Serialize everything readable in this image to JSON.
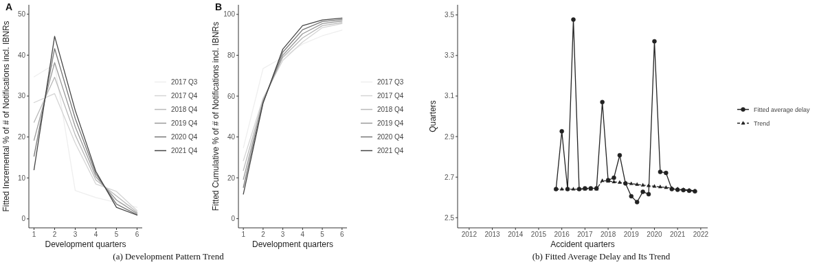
{
  "chart_data": [
    {
      "type": "line",
      "title": "A",
      "xlabel": "Development quarters",
      "ylabel": "Fitted Incremental % of # of Notifications incl. IBNRs",
      "x": [
        1,
        2,
        3,
        4,
        5,
        6
      ],
      "xlim": [
        0.75,
        6.25
      ],
      "xticks": [
        1,
        2,
        3,
        4,
        5,
        6
      ],
      "ylim": [
        -2.2,
        52.3
      ],
      "yticks": [
        0,
        10,
        20,
        30,
        40,
        50
      ],
      "legend": "right",
      "annotations": [
        "(a) Development Pattern Trend"
      ],
      "series": [
        {
          "name": "2017 Q3",
          "color": "#eeeeee",
          "values": [
            34.7,
            37.8,
            6.9,
            5.2,
            4.0,
            2.8
          ]
        },
        {
          "name": "2017 Q4",
          "color": "#d4d4d4",
          "values": [
            28.4,
            30.6,
            18.5,
            8.5,
            6.7,
            2.0
          ]
        },
        {
          "name": "2018 Q4",
          "color": "#b8b8b8",
          "values": [
            23.6,
            34.6,
            20.5,
            9.5,
            5.6,
            1.6
          ]
        },
        {
          "name": "2019 Q4",
          "color": "#999999",
          "values": [
            19.2,
            38.2,
            22.5,
            10.3,
            4.6,
            1.3
          ]
        },
        {
          "name": "2020 Q4",
          "color": "#777777",
          "values": [
            15.3,
            41.6,
            24.5,
            11.0,
            3.6,
            1.0
          ]
        },
        {
          "name": "2021 Q4",
          "color": "#444444",
          "values": [
            12.0,
            44.6,
            26.5,
            11.6,
            2.8,
            0.9
          ]
        }
      ]
    },
    {
      "type": "line",
      "title": "B",
      "xlabel": "Development quarters",
      "ylabel": "Fitted Cumulative % of # of Notifications incl. IBNRs",
      "x": [
        1,
        2,
        3,
        4,
        5,
        6
      ],
      "xlim": [
        0.75,
        6.25
      ],
      "xticks": [
        1,
        2,
        3,
        4,
        5,
        6
      ],
      "ylim": [
        -4.5,
        104.7
      ],
      "yticks": [
        0,
        20,
        40,
        60,
        80,
        100
      ],
      "legend": "right",
      "series": [
        {
          "name": "2017 Q3",
          "color": "#eeeeee",
          "values": [
            34.7,
            73.5,
            79,
            85.5,
            89.5,
            92.3
          ]
        },
        {
          "name": "2017 Q4",
          "color": "#d4d4d4",
          "values": [
            28.4,
            59,
            77.5,
            86.5,
            93.5,
            95.5
          ]
        },
        {
          "name": "2018 Q4",
          "color": "#b8b8b8",
          "values": [
            23.6,
            58.2,
            79,
            88.5,
            94.5,
            96
          ]
        },
        {
          "name": "2019 Q4",
          "color": "#999999",
          "values": [
            19.2,
            57.4,
            80,
            90.5,
            95.5,
            96.8
          ]
        },
        {
          "name": "2020 Q4",
          "color": "#777777",
          "values": [
            15.3,
            57,
            81.5,
            92.5,
            96.5,
            97.5
          ]
        },
        {
          "name": "2021 Q4",
          "color": "#444444",
          "values": [
            12,
            56.6,
            83,
            94.5,
            97.3,
            98.2
          ]
        }
      ]
    },
    {
      "type": "line",
      "xlabel": "Accident quarters",
      "ylabel": "Quarters",
      "x": [
        2015.75,
        2016,
        2016.25,
        2016.5,
        2016.75,
        2017,
        2017.25,
        2017.5,
        2017.75,
        2018,
        2018.25,
        2018.5,
        2018.75,
        2019,
        2019.25,
        2019.5,
        2019.75,
        2020,
        2020.25,
        2020.5,
        2020.75,
        2021,
        2021.25,
        2021.5,
        2021.75
      ],
      "xlim": [
        2011.5,
        2022.3
      ],
      "xticks": [
        2012,
        2013,
        2014,
        2015,
        2016,
        2017,
        2018,
        2019,
        2020,
        2021,
        2022
      ],
      "ylim": [
        2.45,
        3.55
      ],
      "yticks": [
        2.5,
        2.7,
        2.9,
        3.1,
        3.3,
        3.5
      ],
      "legend": "right",
      "annotations": [
        "(b) Fitted Average Delay and Its Trend"
      ],
      "series": [
        {
          "name": "Fitted average delay",
          "color": "#222222",
          "marker": "circle",
          "line_style": "solid",
          "values": [
            2.641,
            2.926,
            2.641,
            3.477,
            2.641,
            2.645,
            2.645,
            2.645,
            3.07,
            2.685,
            2.697,
            2.808,
            2.669,
            2.606,
            2.577,
            2.628,
            2.616,
            3.37,
            2.726,
            2.721,
            2.641,
            2.638,
            2.636,
            2.633,
            2.63
          ]
        },
        {
          "name": "Trend",
          "color": "#222222",
          "marker": "triangle",
          "line_style": "dashed",
          "values": [
            2.641,
            2.641,
            2.641,
            2.641,
            2.641,
            2.641,
            2.641,
            2.641,
            2.683,
            2.68,
            2.677,
            2.674,
            2.671,
            2.668,
            2.664,
            2.661,
            2.658,
            2.655,
            2.652,
            2.649,
            2.646,
            2.642,
            2.639,
            2.636,
            2.633
          ]
        }
      ]
    }
  ]
}
